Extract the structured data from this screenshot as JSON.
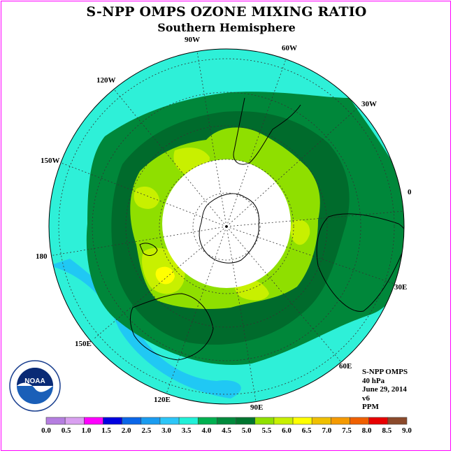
{
  "title": "S-NPP OMPS OZONE MIXING RATIO",
  "subtitle": "Southern Hemisphere",
  "longitude_labels": [
    "90W",
    "60W",
    "120W",
    "30W",
    "150W",
    "0",
    "180",
    "30E",
    "150E",
    "60E",
    "120E",
    "90E"
  ],
  "info": {
    "instrument": "S-NPP OMPS",
    "pressure": "40 hPa",
    "date": "June 29, 2014",
    "version": "v6",
    "units": "PPM"
  },
  "logo_text": "NOAA",
  "colorbar": {
    "ticks": [
      "0.0",
      "0.5",
      "1.0",
      "1.5",
      "2.0",
      "2.5",
      "3.0",
      "3.5",
      "4.0",
      "4.5",
      "5.0",
      "5.5",
      "6.0",
      "6.5",
      "7.0",
      "7.5",
      "8.0",
      "8.5",
      "9.0"
    ],
    "colors": [
      "#b57ee0",
      "#d9a0f0",
      "#ff00ff",
      "#0000e0",
      "#0a66e8",
      "#1a9cf0",
      "#2cc6f8",
      "#20f0d8",
      "#00b050",
      "#008a3c",
      "#00752f",
      "#90e000",
      "#c8f000",
      "#ffff00",
      "#f0c000",
      "#f59a00",
      "#f06000",
      "#e80000",
      "#8b4a2b"
    ]
  },
  "colors": {
    "ocean_outer": "#2ef0d8",
    "green_mid": "#00873a",
    "green_dark": "#006b2c",
    "light_green": "#8fdf00",
    "yellow_green": "#c8f000",
    "polar_night": "#ffffff"
  }
}
